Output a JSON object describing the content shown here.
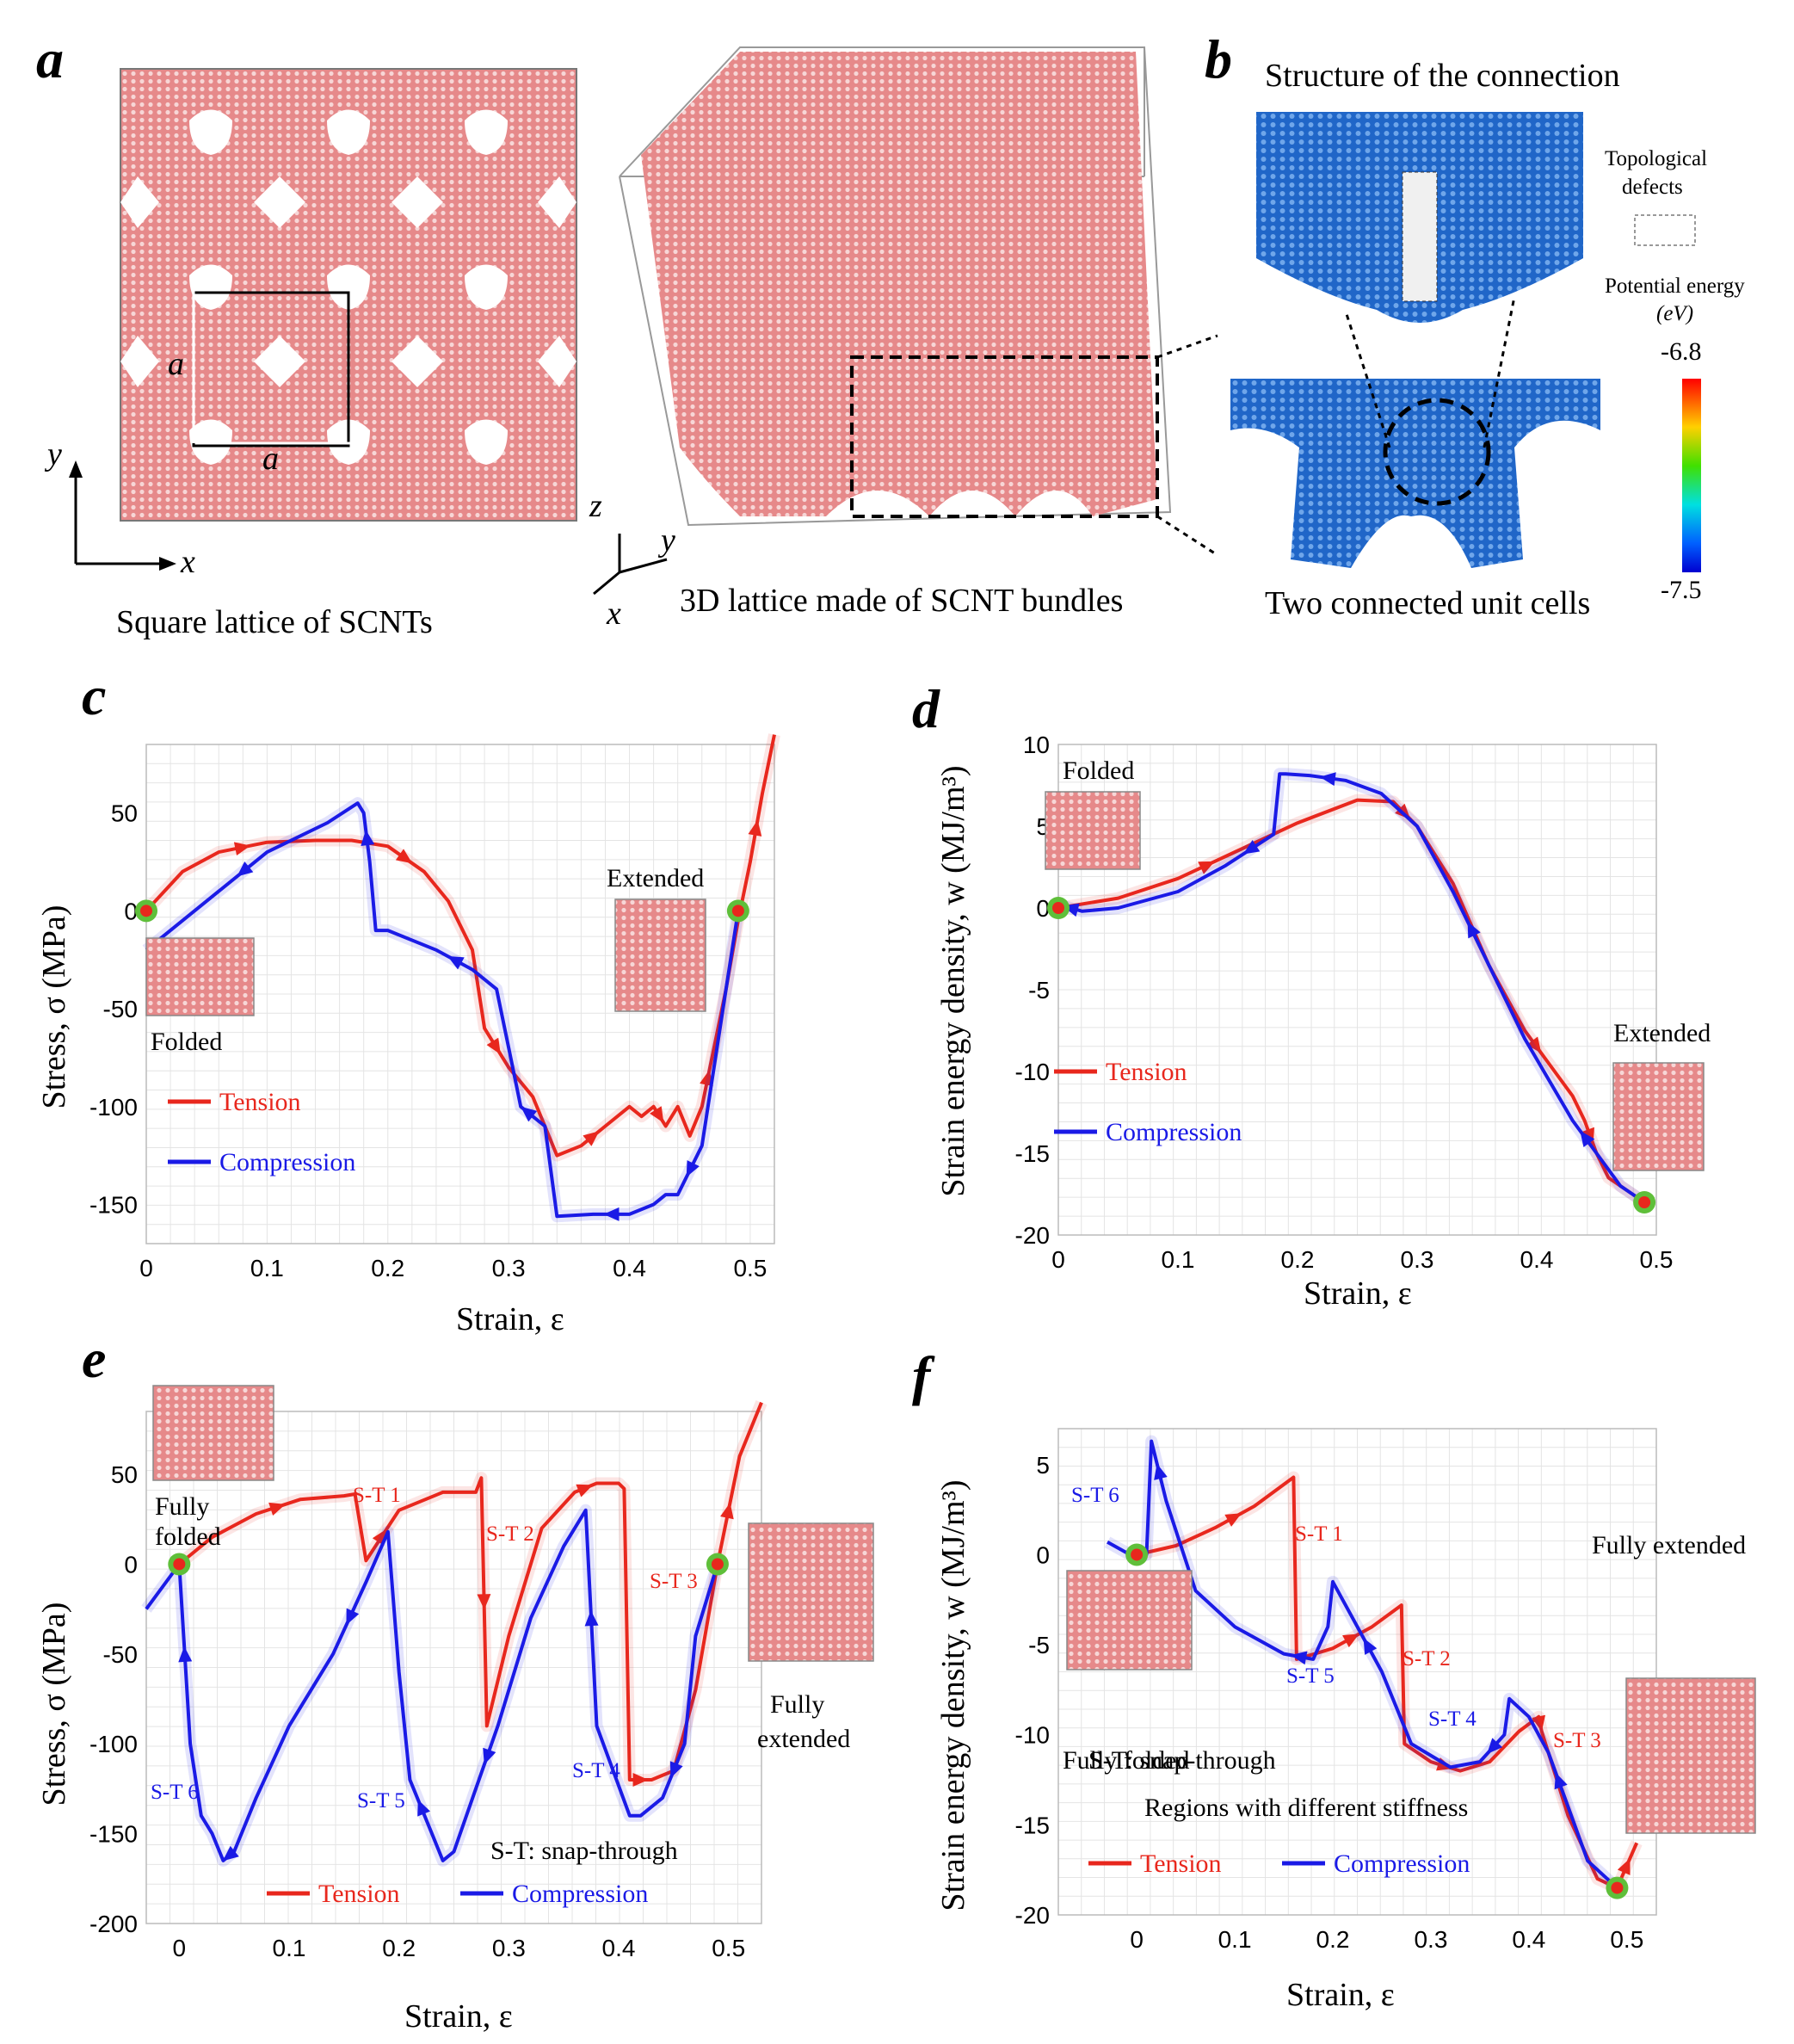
{
  "panels": {
    "a": {
      "letter": "a",
      "left_caption": "Square lattice of SCNTs",
      "right_caption": "3D lattice made of SCNT bundles",
      "unit_label_a": "a",
      "axis_x": "x",
      "axis_y": "y",
      "axis_z": "z"
    },
    "b": {
      "letter": "b",
      "title": "Structure of the connection",
      "bottom_caption": "Two connected unit cells",
      "defects_label": [
        "Topological",
        "defects"
      ],
      "colorbar_label": [
        "Potential energy",
        "(eV)"
      ],
      "colorbar_max": "-6.8",
      "colorbar_min": "-7.5"
    },
    "c": {
      "letter": "c"
    },
    "d": {
      "letter": "d"
    },
    "e": {
      "letter": "e"
    },
    "f": {
      "letter": "f"
    }
  },
  "colors": {
    "tension": "#e8271d",
    "compression": "#1a1ae6",
    "lattice": "#d9595b",
    "marker_ring": "#5fbf3a"
  },
  "chart_data": [
    {
      "id": "c",
      "type": "line",
      "xlabel": "Strain, ε",
      "ylabel": "Stress, σ (MPa)",
      "xlim": [
        0,
        0.52
      ],
      "ylim": [
        -170,
        85
      ],
      "xticks": [
        "0",
        "0.1",
        "0.2",
        "0.3",
        "0.4",
        "0.5"
      ],
      "yticks": [
        "50",
        "0",
        "-50",
        "-100",
        "-150"
      ],
      "grid": true,
      "legend": "bottom-left",
      "legend_entries": [
        "Tension",
        "Compression"
      ],
      "annotations": [
        "Extended",
        "Folded"
      ],
      "series": [
        {
          "name": "Tension",
          "color": "#e8271d",
          "x": [
            0,
            0.03,
            0.06,
            0.1,
            0.14,
            0.17,
            0.2,
            0.23,
            0.25,
            0.27,
            0.28,
            0.3,
            0.32,
            0.34,
            0.36,
            0.38,
            0.4,
            0.41,
            0.42,
            0.43,
            0.44,
            0.45,
            0.46,
            0.47,
            0.48,
            0.49,
            0.5,
            0.51,
            0.52
          ],
          "y": [
            0,
            20,
            30,
            35,
            36,
            36,
            33,
            20,
            5,
            -20,
            -60,
            -80,
            -95,
            -125,
            -120,
            -110,
            -100,
            -105,
            -100,
            -110,
            -100,
            -115,
            -100,
            -70,
            -40,
            -5,
            25,
            60,
            90
          ]
        },
        {
          "name": "Compression",
          "color": "#1a1ae6",
          "x": [
            0.49,
            0.48,
            0.46,
            0.44,
            0.43,
            0.42,
            0.4,
            0.37,
            0.34,
            0.33,
            0.32,
            0.31,
            0.3,
            0.29,
            0.27,
            0.24,
            0.2,
            0.19,
            0.185,
            0.18,
            0.175,
            0.15,
            0.1,
            0.06,
            0.03,
            0
          ],
          "y": [
            0,
            -40,
            -120,
            -145,
            -145,
            -150,
            -155,
            -155,
            -156,
            -110,
            -105,
            -100,
            -70,
            -40,
            -30,
            -20,
            -10,
            -10,
            25,
            50,
            55,
            45,
            30,
            10,
            -5,
            -20
          ]
        }
      ]
    },
    {
      "id": "d",
      "type": "line",
      "xlabel": "Strain, ε",
      "ylabel": "Strain energy density, w (MJ/m³)",
      "xlim": [
        0,
        0.5
      ],
      "ylim": [
        -20,
        10
      ],
      "xticks": [
        "0",
        "0.1",
        "0.2",
        "0.3",
        "0.4",
        "0.5"
      ],
      "yticks": [
        "10",
        "5",
        "0",
        "-5",
        "-10",
        "-15",
        "-20"
      ],
      "grid": true,
      "legend": "left",
      "legend_entries": [
        "Tension",
        "Compression"
      ],
      "annotations": [
        "Folded",
        "Extended"
      ],
      "series": [
        {
          "name": "Tension",
          "color": "#e8271d",
          "x": [
            0,
            0.05,
            0.1,
            0.15,
            0.2,
            0.25,
            0.28,
            0.3,
            0.33,
            0.36,
            0.39,
            0.41,
            0.42,
            0.43,
            0.44,
            0.45,
            0.46,
            0.48,
            0.49
          ],
          "y": [
            0,
            0.6,
            1.8,
            3.5,
            5.2,
            6.6,
            6.5,
            5,
            1.5,
            -3.5,
            -7.5,
            -9.5,
            -10.5,
            -11.5,
            -13,
            -15,
            -16.5,
            -17.5,
            -18
          ]
        },
        {
          "name": "Compression",
          "color": "#1a1ae6",
          "x": [
            0.49,
            0.47,
            0.45,
            0.43,
            0.41,
            0.39,
            0.36,
            0.33,
            0.3,
            0.27,
            0.24,
            0.21,
            0.19,
            0.185,
            0.18,
            0.14,
            0.1,
            0.05,
            0.02,
            0
          ],
          "y": [
            -18,
            -17,
            -15,
            -13,
            -10.5,
            -8,
            -3.5,
            1,
            5,
            7,
            7.8,
            8.1,
            8.2,
            8.2,
            4.5,
            2.6,
            1,
            0,
            -0.2,
            0.2
          ]
        }
      ]
    },
    {
      "id": "e",
      "type": "line",
      "xlabel": "Strain, ε",
      "ylabel": "Stress, σ (MPa)",
      "xlim": [
        -0.03,
        0.53
      ],
      "ylim": [
        -200,
        85
      ],
      "xticks": [
        "0",
        "0.1",
        "0.2",
        "0.3",
        "0.4",
        "0.5"
      ],
      "yticks": [
        "50",
        "0",
        "-50",
        "-100",
        "-150",
        "-200"
      ],
      "grid": true,
      "legend": "bottom",
      "legend_entries": [
        "Tension",
        "Compression"
      ],
      "annotations": [
        "Fully",
        "folded",
        "Fully",
        "extended",
        "S-T 1",
        "S-T 2",
        "S-T 3",
        "S-T 4",
        "S-T 5",
        "S-T 6",
        "S-T: snap-through"
      ],
      "series": [
        {
          "name": "Tension",
          "color": "#e8271d",
          "x": [
            0,
            0.03,
            0.07,
            0.11,
            0.15,
            0.16,
            0.17,
            0.2,
            0.24,
            0.27,
            0.275,
            0.28,
            0.3,
            0.33,
            0.36,
            0.38,
            0.4,
            0.405,
            0.41,
            0.43,
            0.45,
            0.47,
            0.49,
            0.51,
            0.53
          ],
          "y": [
            0,
            15,
            28,
            36,
            38,
            39,
            2,
            30,
            40,
            40,
            48,
            -90,
            -40,
            20,
            40,
            45,
            45,
            42,
            -120,
            -120,
            -115,
            -70,
            0,
            60,
            90
          ]
        },
        {
          "name": "Compression",
          "color": "#1a1ae6",
          "x": [
            0.49,
            0.47,
            0.46,
            0.44,
            0.42,
            0.41,
            0.38,
            0.37,
            0.35,
            0.32,
            0.29,
            0.27,
            0.25,
            0.24,
            0.23,
            0.21,
            0.2,
            0.19,
            0.17,
            0.14,
            0.1,
            0.07,
            0.05,
            0.04,
            0.03,
            0.02,
            0.01,
            0,
            -0.03
          ],
          "y": [
            0,
            -40,
            -100,
            -130,
            -140,
            -140,
            -90,
            30,
            10,
            -30,
            -90,
            -125,
            -160,
            -165,
            -150,
            -120,
            -60,
            18,
            -10,
            -50,
            -90,
            -130,
            -160,
            -165,
            -150,
            -140,
            -100,
            0,
            -25
          ]
        }
      ]
    },
    {
      "id": "f",
      "type": "line",
      "xlabel": "Strain, ε",
      "ylabel": "Strain energy density, w (MJ/m³)",
      "xlim": [
        -0.08,
        0.53
      ],
      "ylim": [
        -20,
        7
      ],
      "xticks": [
        "0",
        "0.1",
        "0.2",
        "0.3",
        "0.4",
        "0.5"
      ],
      "yticks": [
        "5",
        "0",
        "-5",
        "-10",
        "-15",
        "-20"
      ],
      "grid": true,
      "legend": "bottom-left",
      "legend_entries": [
        "Tension",
        "Compression"
      ],
      "annotations": [
        "Fully folded",
        "Fully extended",
        "S-T 1",
        "S-T 2",
        "S-T 3",
        "S-T 4",
        "S-T 5",
        "S-T 6",
        "S-T: snap-through",
        "Regions with different stiffness"
      ],
      "series": [
        {
          "name": "Tension",
          "color": "#e8271d",
          "x": [
            0,
            0.04,
            0.08,
            0.12,
            0.16,
            0.163,
            0.2,
            0.24,
            0.27,
            0.273,
            0.3,
            0.33,
            0.36,
            0.39,
            0.41,
            0.413,
            0.44,
            0.47,
            0.49,
            0.51
          ],
          "y": [
            0,
            0.5,
            1.5,
            2.7,
            4.3,
            -5.8,
            -5.2,
            -4,
            -2.8,
            -10.5,
            -11.5,
            -12,
            -11.5,
            -9.8,
            -9,
            -9.8,
            -14.5,
            -18,
            -18.5,
            -16
          ]
        },
        {
          "name": "Compression",
          "color": "#1a1ae6",
          "x": [
            0.49,
            0.46,
            0.44,
            0.42,
            0.4,
            0.38,
            0.375,
            0.35,
            0.32,
            0.28,
            0.25,
            0.22,
            0.2,
            0.195,
            0.18,
            0.15,
            0.1,
            0.06,
            0.03,
            0.015,
            0.01,
            0,
            -0.03
          ],
          "y": [
            -18.5,
            -17,
            -14,
            -11,
            -9,
            -8,
            -10,
            -11.5,
            -11.8,
            -10.5,
            -6.5,
            -3.5,
            -1.5,
            -4,
            -5.8,
            -5.5,
            -4,
            -2,
            3,
            6.3,
            0,
            -0.2,
            0.7
          ]
        }
      ]
    }
  ]
}
